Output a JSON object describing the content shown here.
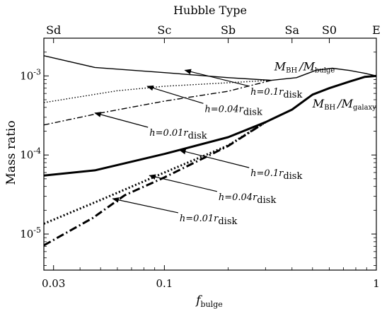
{
  "chart_data": {
    "type": "line",
    "top_axis_title": "Hubble Type",
    "top_tick_labels": [
      {
        "label": "Sd",
        "x": 0.03
      },
      {
        "label": "Sc",
        "x": 0.1
      },
      {
        "label": "Sb",
        "x": 0.2
      },
      {
        "label": "Sa",
        "x": 0.4
      },
      {
        "label": "S0",
        "x": 0.6
      },
      {
        "label": "E",
        "x": 1.0
      }
    ],
    "xlabel": {
      "base": "f",
      "sub": "bulge"
    },
    "ylabel": "Mass ratio",
    "x_scale": "log",
    "y_scale": "log",
    "xlim": [
      0.027,
      1.0
    ],
    "ylim": [
      3.5e-06,
      0.003
    ],
    "x_ticks": [
      {
        "label": "0.03",
        "value": 0.03
      },
      {
        "label": "0.1",
        "value": 0.1
      },
      {
        "label": "1",
        "value": 1.0
      }
    ],
    "y_ticks": [
      {
        "base": "10",
        "exp": "-5",
        "value": 1e-05
      },
      {
        "base": "10",
        "exp": "-4",
        "value": 0.0001
      },
      {
        "base": "10",
        "exp": "-3",
        "value": 0.001
      }
    ],
    "grid": false,
    "legend": "none",
    "series": [
      {
        "group": "bulge",
        "style": "solid",
        "width": 1.4,
        "x": [
          0.027,
          0.047,
          0.1,
          0.2,
          0.32,
          0.42,
          0.52,
          0.62,
          0.75,
          0.88,
          1.0
        ],
        "y": [
          0.0018,
          0.00128,
          0.0011,
          0.00095,
          0.00088,
          0.00095,
          0.00118,
          0.00125,
          0.00117,
          0.00108,
          0.001
        ]
      },
      {
        "group": "bulge",
        "style": "dotted",
        "width": 1.4,
        "x": [
          0.027,
          0.06,
          0.1,
          0.2,
          0.32
        ],
        "y": [
          0.00046,
          0.00065,
          0.00074,
          0.00082,
          0.00088
        ]
      },
      {
        "group": "bulge",
        "style": "dashdot",
        "width": 1.4,
        "x": [
          0.027,
          0.05,
          0.1,
          0.2,
          0.32
        ],
        "y": [
          0.00024,
          0.00034,
          0.00048,
          0.00064,
          0.00088
        ]
      },
      {
        "group": "galaxy",
        "style": "solid",
        "width": 3,
        "x": [
          0.027,
          0.047,
          0.1,
          0.2,
          0.3,
          0.4,
          0.5,
          0.6,
          0.75,
          0.88,
          1.0
        ],
        "y": [
          5.5e-05,
          6.4e-05,
          0.000103,
          0.000168,
          0.00026,
          0.000375,
          0.00058,
          0.0007,
          0.00085,
          0.00097,
          0.001
        ]
      },
      {
        "group": "galaxy",
        "style": "dotted",
        "width": 3,
        "x": [
          0.027,
          0.05,
          0.1,
          0.2,
          0.3
        ],
        "y": [
          1.35e-05,
          2.7e-05,
          6e-05,
          0.000132,
          0.00026
        ]
      },
      {
        "group": "galaxy",
        "style": "dashdot",
        "width": 3,
        "x": [
          0.027,
          0.046,
          0.065,
          0.1,
          0.2,
          0.3
        ],
        "y": [
          7.2e-06,
          1.6e-05,
          3.1e-05,
          5.2e-05,
          0.00013,
          0.00026
        ]
      }
    ],
    "annotations": [
      {
        "text_main": "h=0.1r",
        "text_sub": "disk",
        "text_xy": [
          0.255,
          0.00058
        ],
        "arrow_to": [
          0.125,
          0.00118
        ]
      },
      {
        "text_main": "h=0.04r",
        "text_sub": "disk",
        "text_xy": [
          0.155,
          0.00035
        ],
        "arrow_to": [
          0.083,
          0.00074
        ]
      },
      {
        "text_main": "h=0.01r",
        "text_sub": "disk",
        "text_xy": [
          0.085,
          0.000175
        ],
        "arrow_to": [
          0.047,
          0.00034
        ]
      },
      {
        "text_main": "h=0.1r",
        "text_sub": "disk",
        "text_xy": [
          0.255,
          5.4e-05
        ],
        "arrow_to": [
          0.118,
          0.000115
        ]
      },
      {
        "text_main": "h=0.04r",
        "text_sub": "disk",
        "text_xy": [
          0.18,
          2.7e-05
        ],
        "arrow_to": [
          0.085,
          5.5e-05
        ]
      },
      {
        "text_main": "h=0.01r",
        "text_sub": "disk",
        "text_xy": [
          0.118,
          1.45e-05
        ],
        "arrow_to": [
          0.057,
          2.8e-05
        ]
      }
    ],
    "curve_labels": [
      {
        "main": "M",
        "sub1": "BH",
        "slash": "/M",
        "sub2": "bulge",
        "xy": [
          0.33,
          0.00118
        ]
      },
      {
        "main": "M",
        "sub1": "BH",
        "slash": "/M",
        "sub2": "galaxy",
        "xy": [
          0.5,
          0.0004
        ]
      }
    ]
  }
}
